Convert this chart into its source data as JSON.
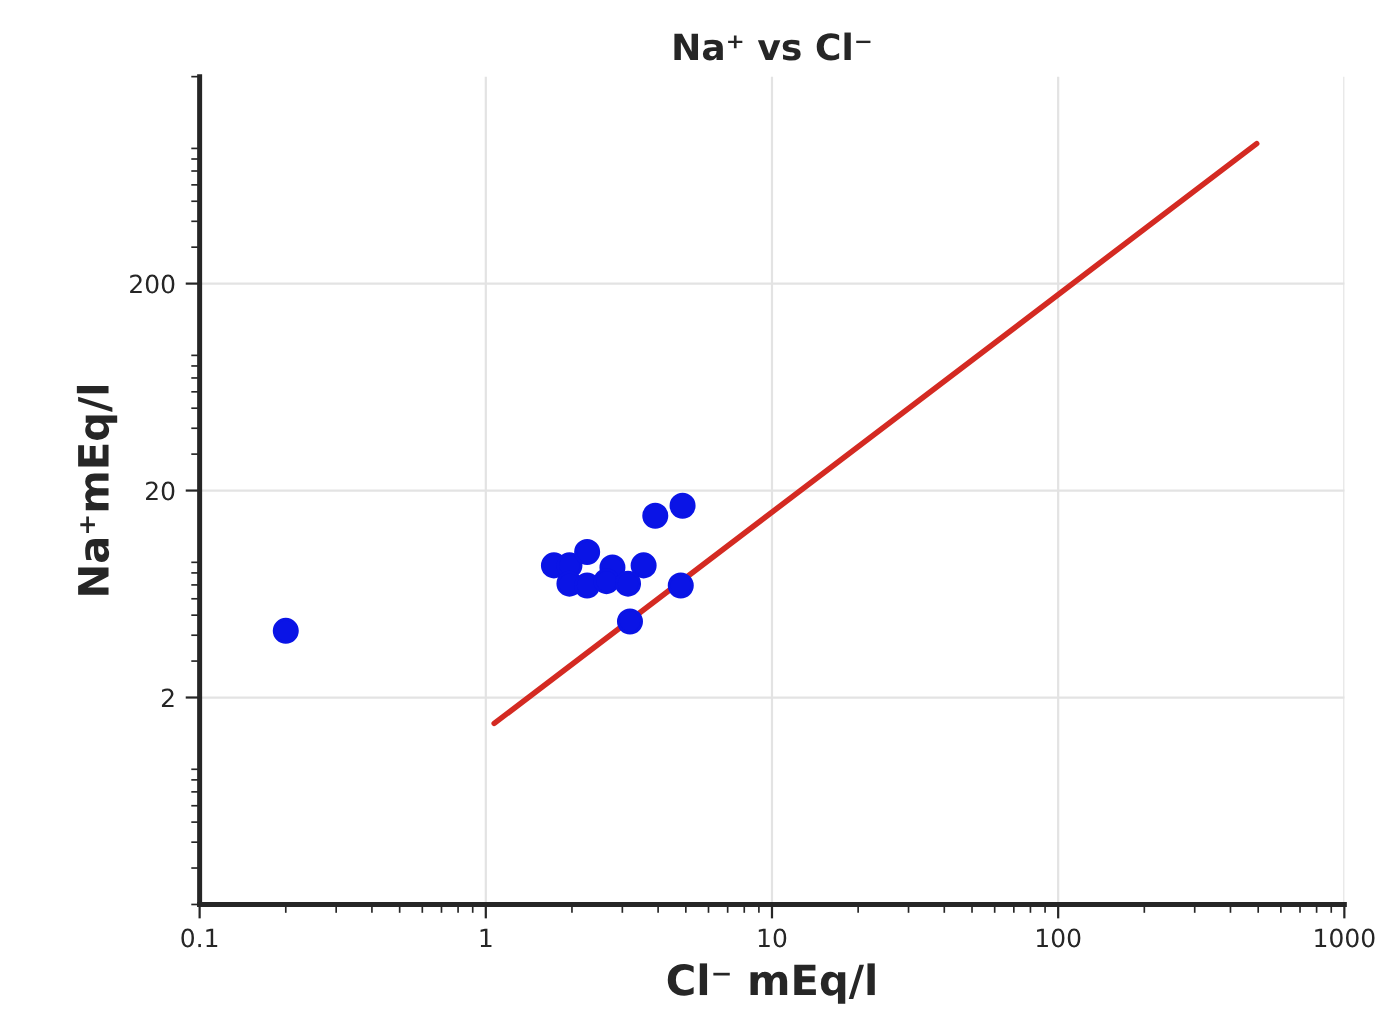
{
  "chart_data": {
    "type": "scatter",
    "title": "Na⁺ vs Cl⁻",
    "xlabel": "Cl⁻ mEq/l",
    "ylabel": "Na⁺mEq/l",
    "log": "xy",
    "xlim": [
      0.1,
      1000
    ],
    "ylim": [
      0.2,
      2000
    ],
    "xticks": [
      0.1,
      1,
      10,
      100,
      1000
    ],
    "yticks": [
      2,
      20,
      200
    ],
    "grid": true,
    "series": [
      {
        "marker": "circle",
        "color": "#0a14e6",
        "x": [
          0.2,
          1.73,
          1.96,
          2.26,
          2.77,
          3.56,
          1.96,
          2.26,
          2.64,
          3.14,
          3.91,
          4.87,
          4.8,
          3.19
        ],
        "values": [
          4.2,
          8.7,
          8.7,
          10.1,
          8.5,
          8.7,
          7.1,
          6.95,
          7.3,
          7.1,
          15.1,
          16.9,
          6.95,
          4.66
        ]
      },
      {
        "type": "line",
        "color": "#d42a22",
        "x": [
          1.07,
          494
        ],
        "values": [
          1.5,
          949
        ]
      }
    ]
  }
}
